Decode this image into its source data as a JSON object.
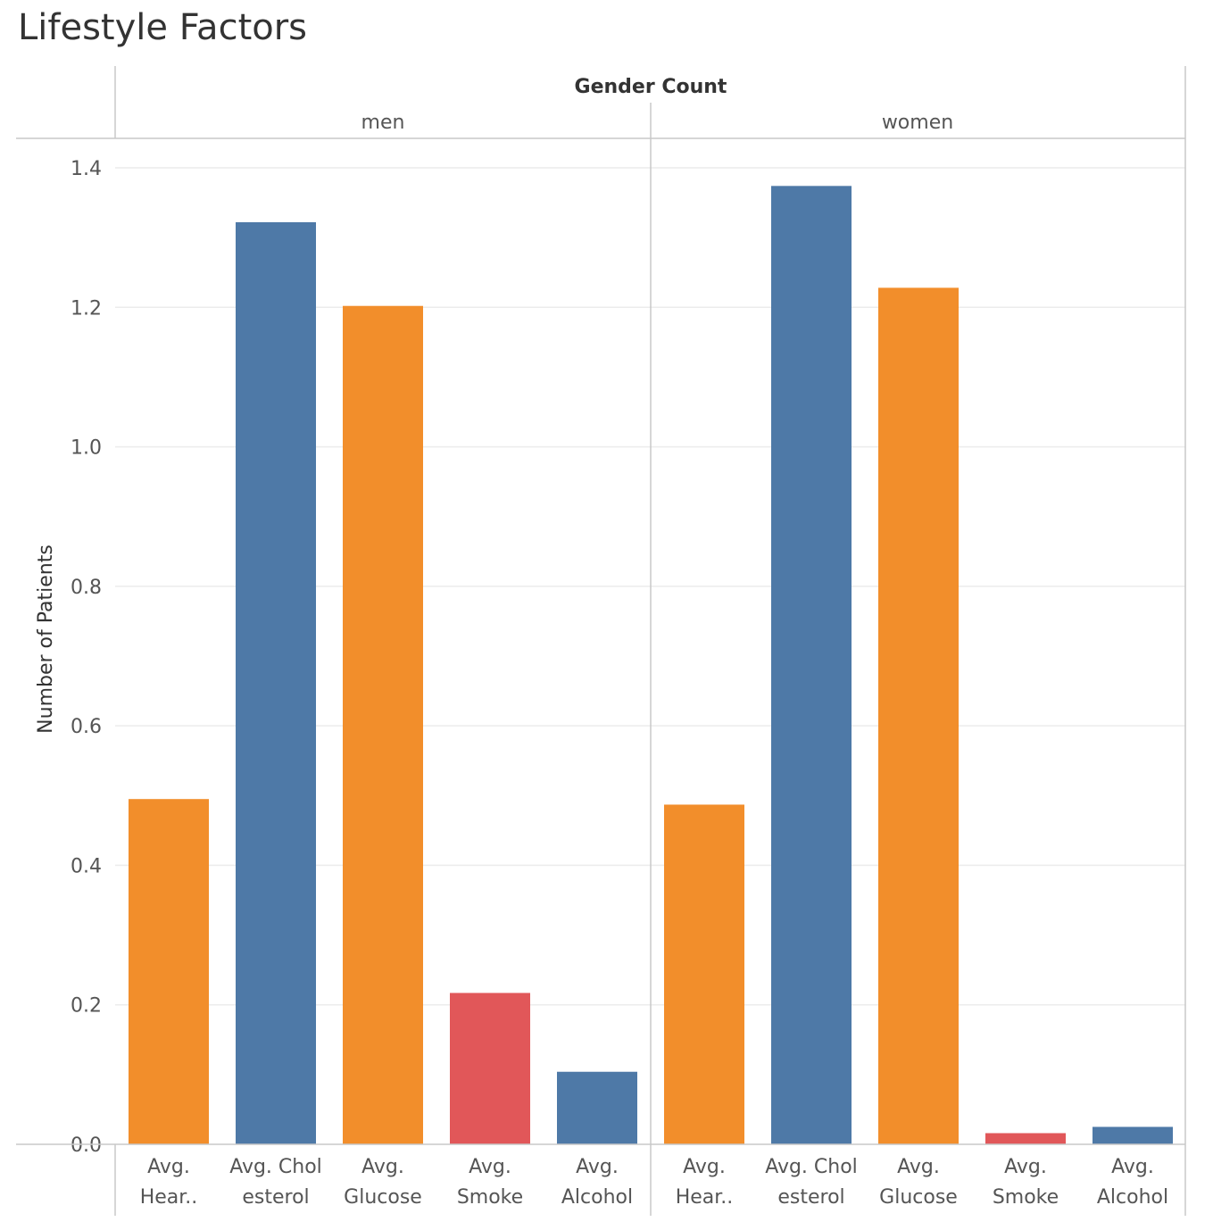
{
  "chart_data": {
    "type": "bar",
    "title": "Lifestyle Factors",
    "column_header": "Gender Count",
    "ylabel": "Number of Patients",
    "ylim": [
      0,
      1.4
    ],
    "yticks": [
      "0.0",
      "0.2",
      "0.4",
      "0.6",
      "0.8",
      "1.0",
      "1.2",
      "1.4"
    ],
    "categories": [
      [
        "Avg.",
        "Hear.."
      ],
      [
        "Avg. Chol",
        "esterol"
      ],
      [
        "Avg.",
        "Glucose"
      ],
      [
        "Avg.",
        "Smoke"
      ],
      [
        "Avg.",
        "Alcohol"
      ]
    ],
    "bar_colors": [
      "#f28e2b",
      "#4e79a7",
      "#f28e2b",
      "#e15759",
      "#4e79a7"
    ],
    "panels": [
      {
        "name": "men",
        "values": [
          0.495,
          1.322,
          1.202,
          0.217,
          0.104
        ]
      },
      {
        "name": "women",
        "values": [
          0.487,
          1.374,
          1.228,
          0.016,
          0.025
        ]
      }
    ],
    "grid": true
  }
}
